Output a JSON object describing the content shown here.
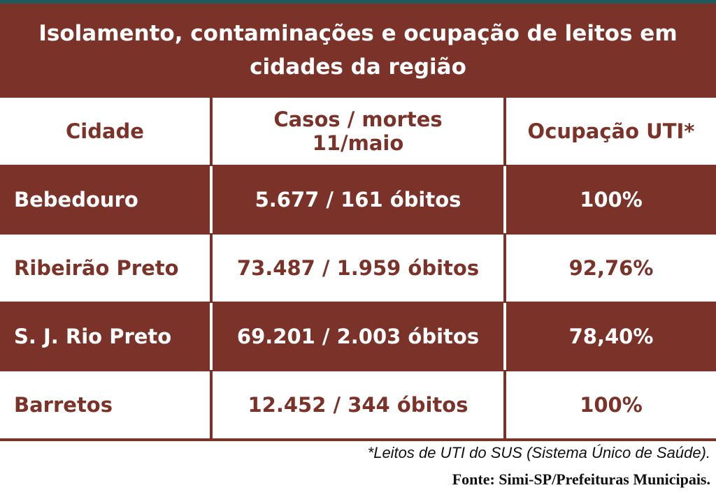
{
  "title": "Isolamento, contaminações e ocupação de leitos em cidades da região",
  "columns": {
    "city": "Cidade",
    "cases_line1": "Casos / mortes",
    "cases_line2": "11/maio",
    "icu": "Ocupação UTI*"
  },
  "rows": [
    {
      "city": "Bebedouro",
      "cases": "5.677 / 161 óbitos",
      "icu": "100%"
    },
    {
      "city": "Ribeirão Preto",
      "cases": "73.487 / 1.959 óbitos",
      "icu": "92,76%"
    },
    {
      "city": "S. J. Rio Preto",
      "cases": "69.201 / 2.003 óbitos",
      "icu": "78,40%"
    },
    {
      "city": "Barretos",
      "cases": "12.452 / 344 óbitos",
      "icu": "100%"
    }
  ],
  "footnote": "*Leitos de UTI do SUS (Sistema Único de Saúde).",
  "source": "Fonte: Simi-SP/Prefeituras Municipais.",
  "colors": {
    "brand": "#7b3329",
    "top_rule": "#1f5a5e"
  }
}
